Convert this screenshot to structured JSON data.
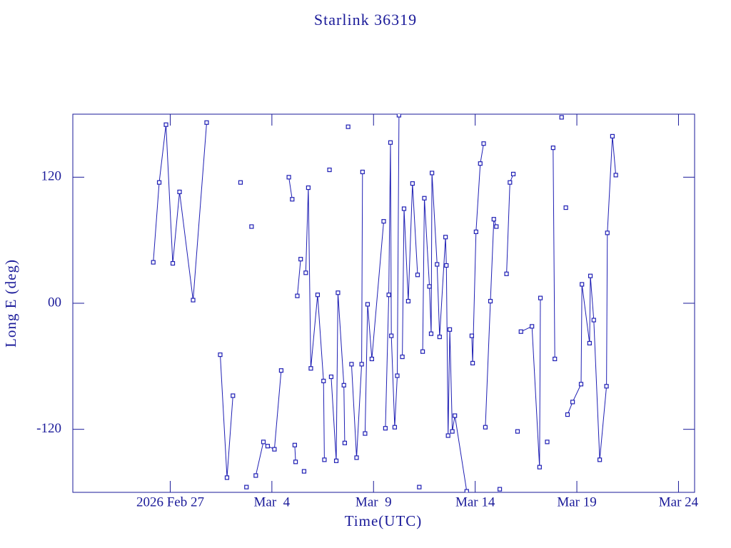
{
  "chart_data": {
    "type": "line",
    "title": "Starlink 36319",
    "x_label": "Time(UTC)",
    "y_label": "Long E (deg)",
    "color": "#1f1fb4",
    "marker": "square",
    "xlim": [
      "2026-02-22T05:00",
      "2026-03-24T19:00"
    ],
    "xticks": [
      {
        "value": "2026-02-27T00:00",
        "label": "2026 Feb 27"
      },
      {
        "value": "2026-03-04T00:00",
        "label": "Mar  4"
      },
      {
        "value": "2026-03-09T00:00",
        "label": "Mar  9"
      },
      {
        "value": "2026-03-14T00:00",
        "label": "Mar 14"
      },
      {
        "value": "2026-03-19T00:00",
        "label": "Mar 19"
      },
      {
        "value": "2026-03-24T00:00",
        "label": "Mar 24"
      }
    ],
    "ylim": [
      -180,
      180
    ],
    "yticks": [
      -120,
      {
        "value": 0,
        "label": "00"
      },
      120
    ],
    "x": [
      "2026-02-26T04:00",
      "2026-02-26T11:00",
      "2026-02-26T19:00",
      "2026-02-27T03:00",
      "2026-02-27T11:00",
      "2026-02-28T03:00",
      "2026-02-28T19:00",
      null,
      "2026-03-01T11:00",
      "2026-03-01T19:00",
      "2026-03-02T02:00",
      null,
      "2026-03-02T11:00",
      null,
      "2026-03-02T18:00",
      null,
      "2026-03-03T00:00",
      null,
      "2026-03-03T05:00",
      "2026-03-03T14:00",
      "2026-03-03T19:00",
      "2026-03-04T03:00",
      "2026-03-04T11:00",
      null,
      "2026-03-04T20:00",
      "2026-03-05T00:00",
      null,
      "2026-03-05T03:00",
      "2026-03-05T04:00",
      null,
      "2026-03-05T06:00",
      "2026-03-05T10:00",
      null,
      "2026-03-05T14:00",
      null,
      "2026-03-05T16:00",
      "2026-03-05T19:00",
      "2026-03-05T22:00",
      "2026-03-06T06:00",
      "2026-03-06T13:00",
      "2026-03-06T14:00",
      null,
      "2026-03-06T20:00",
      null,
      "2026-03-06T22:00",
      "2026-03-07T04:00",
      "2026-03-07T06:00",
      "2026-03-07T13:00",
      "2026-03-07T14:00",
      null,
      "2026-03-07T18:00",
      null,
      "2026-03-07T22:00",
      "2026-03-08T04:00",
      "2026-03-08T10:00",
      "2026-03-08T11:00",
      null,
      "2026-03-08T14:00",
      "2026-03-08T17:00",
      "2026-03-08T22:00",
      "2026-03-09T12:00",
      null,
      "2026-03-09T14:00",
      "2026-03-09T18:00",
      "2026-03-09T20:00",
      "2026-03-09T21:00",
      "2026-03-10T01:00",
      "2026-03-10T04:00",
      "2026-03-10T06:00",
      null,
      "2026-03-10T10:00",
      "2026-03-10T12:00",
      "2026-03-10T17:00",
      "2026-03-10T22:00",
      "2026-03-11T04:00",
      null,
      "2026-03-11T06:00",
      null,
      "2026-03-11T10:00",
      "2026-03-11T12:00",
      "2026-03-11T18:00",
      "2026-03-11T20:00",
      "2026-03-11T21:00",
      "2026-03-12T03:00",
      "2026-03-12T06:00",
      "2026-03-12T13:00",
      "2026-03-12T14:00",
      "2026-03-12T16:00",
      "2026-03-12T18:00",
      "2026-03-12T21:00",
      "2026-03-13T00:00",
      "2026-03-13T14:00",
      null,
      "2026-03-13T20:00",
      "2026-03-13T21:00",
      "2026-03-14T01:00",
      "2026-03-14T06:00",
      "2026-03-14T10:00",
      null,
      "2026-03-14T12:00",
      "2026-03-14T18:00",
      "2026-03-14T22:00",
      "2026-03-15T01:00",
      null,
      "2026-03-15T05:00",
      null,
      "2026-03-15T13:00",
      "2026-03-15T17:00",
      "2026-03-15T21:00",
      null,
      "2026-03-16T02:00",
      null,
      "2026-03-16T06:00",
      "2026-03-16T19:00",
      "2026-03-17T04:00",
      "2026-03-17T05:00",
      null,
      "2026-03-17T13:00",
      null,
      "2026-03-17T20:00",
      "2026-03-17T22:00",
      null,
      "2026-03-18T06:00",
      null,
      "2026-03-18T11:00",
      null,
      "2026-03-18T13:00",
      "2026-03-18T19:00",
      "2026-03-19T05:00",
      "2026-03-19T06:00",
      "2026-03-19T15:00",
      "2026-03-19T16:00",
      "2026-03-19T20:00",
      "2026-03-20T03:00",
      "2026-03-20T11:00",
      "2026-03-20T12:00",
      "2026-03-20T18:00",
      "2026-03-20T22:00"
    ],
    "values": [
      39,
      115,
      170,
      38,
      106,
      3,
      172,
      null,
      -49,
      -166,
      -88,
      null,
      115,
      null,
      -175,
      null,
      73,
      null,
      -164,
      -132,
      -136,
      -139,
      -64,
      null,
      120,
      99,
      null,
      -135,
      -151,
      null,
      7,
      42,
      null,
      -160,
      null,
      29,
      110,
      -62,
      8,
      -74,
      -149,
      null,
      127,
      null,
      -70,
      -150,
      10,
      -78,
      -133,
      null,
      168,
      null,
      -58,
      -147,
      -58,
      125,
      null,
      -124,
      -1,
      -53,
      78,
      null,
      -119,
      8,
      153,
      -31,
      -118,
      -69,
      179,
      null,
      -51,
      90,
      2,
      114,
      27,
      null,
      -175,
      null,
      -46,
      100,
      16,
      -29,
      124,
      37,
      -32,
      63,
      36,
      -126,
      -25,
      -122,
      -107,
      -179,
      null,
      -31,
      -57,
      68,
      133,
      152,
      null,
      -118,
      2,
      80,
      73,
      null,
      -177,
      null,
      28,
      115,
      123,
      null,
      -122,
      null,
      -27,
      -22,
      -156,
      5,
      null,
      -132,
      null,
      148,
      -53,
      null,
      177,
      null,
      91,
      null,
      -106,
      -94,
      -77,
      18,
      -38,
      26,
      -16,
      -149,
      -79,
      67,
      159,
      122
    ]
  }
}
